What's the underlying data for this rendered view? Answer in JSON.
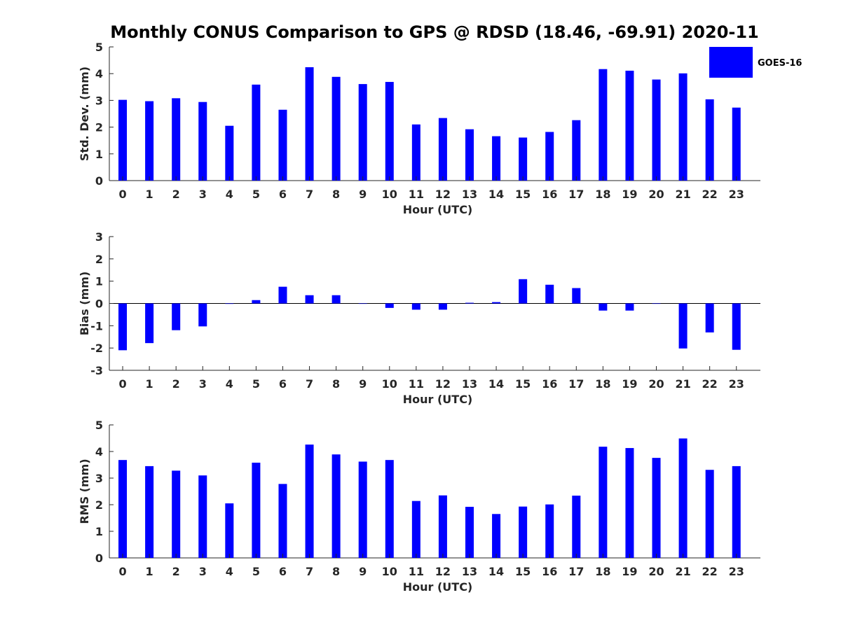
{
  "chart_data": {
    "title": "Monthly CONUS Comparison to GPS @ RDSD (18.46, -69.91) 2020-11",
    "legend": {
      "label": "GOES-16",
      "color": "#0000ff",
      "placement": "top-right"
    },
    "bar_color": "#0000ff",
    "panels": [
      {
        "type": "bar",
        "id": "std",
        "categories": [
          "0",
          "1",
          "2",
          "3",
          "4",
          "5",
          "6",
          "7",
          "8",
          "9",
          "10",
          "11",
          "12",
          "13",
          "14",
          "15",
          "16",
          "17",
          "18",
          "19",
          "20",
          "21",
          "22",
          "23"
        ],
        "values": [
          3.02,
          2.97,
          3.08,
          2.94,
          2.05,
          3.59,
          2.65,
          4.24,
          3.88,
          3.61,
          3.69,
          2.1,
          2.34,
          1.92,
          1.66,
          1.61,
          1.82,
          2.26,
          4.17,
          4.11,
          3.78,
          4.01,
          3.04,
          2.73
        ],
        "xlabel": "Hour (UTC)",
        "ylabel": "Std. Dev. (mm)",
        "ylim": [
          0,
          5
        ],
        "yticks": [
          "0",
          "1",
          "2",
          "3",
          "4",
          "5"
        ],
        "grid": false
      },
      {
        "type": "bar",
        "id": "bias",
        "categories": [
          "0",
          "1",
          "2",
          "3",
          "4",
          "5",
          "6",
          "7",
          "8",
          "9",
          "10",
          "11",
          "12",
          "13",
          "14",
          "15",
          "16",
          "17",
          "18",
          "19",
          "20",
          "21",
          "22",
          "23"
        ],
        "values": [
          -2.1,
          -1.78,
          -1.2,
          -1.03,
          -0.02,
          0.15,
          0.75,
          0.37,
          0.37,
          0.0,
          -0.2,
          -0.28,
          -0.28,
          0.03,
          0.06,
          1.09,
          0.84,
          0.69,
          -0.32,
          -0.32,
          0.0,
          -2.02,
          -1.3,
          -2.08
        ],
        "xlabel": "Hour (UTC)",
        "ylabel": "Bias (mm)",
        "ylim": [
          -3,
          3
        ],
        "yticks": [
          "-3",
          "-2",
          "-1",
          "0",
          "1",
          "2",
          "3"
        ],
        "grid": false
      },
      {
        "type": "bar",
        "id": "rms",
        "categories": [
          "0",
          "1",
          "2",
          "3",
          "4",
          "5",
          "6",
          "7",
          "8",
          "9",
          "10",
          "11",
          "12",
          "13",
          "14",
          "15",
          "16",
          "17",
          "18",
          "19",
          "20",
          "21",
          "22",
          "23"
        ],
        "values": [
          3.68,
          3.45,
          3.28,
          3.1,
          2.05,
          3.58,
          2.78,
          4.26,
          3.89,
          3.62,
          3.68,
          2.14,
          2.35,
          1.92,
          1.65,
          1.93,
          2.01,
          2.34,
          4.18,
          4.13,
          3.76,
          4.49,
          3.31,
          3.45
        ],
        "xlabel": "Hour (UTC)",
        "ylabel": "RMS (mm)",
        "ylim": [
          0,
          5
        ],
        "yticks": [
          "0",
          "1",
          "2",
          "3",
          "4",
          "5"
        ],
        "grid": false
      }
    ]
  }
}
